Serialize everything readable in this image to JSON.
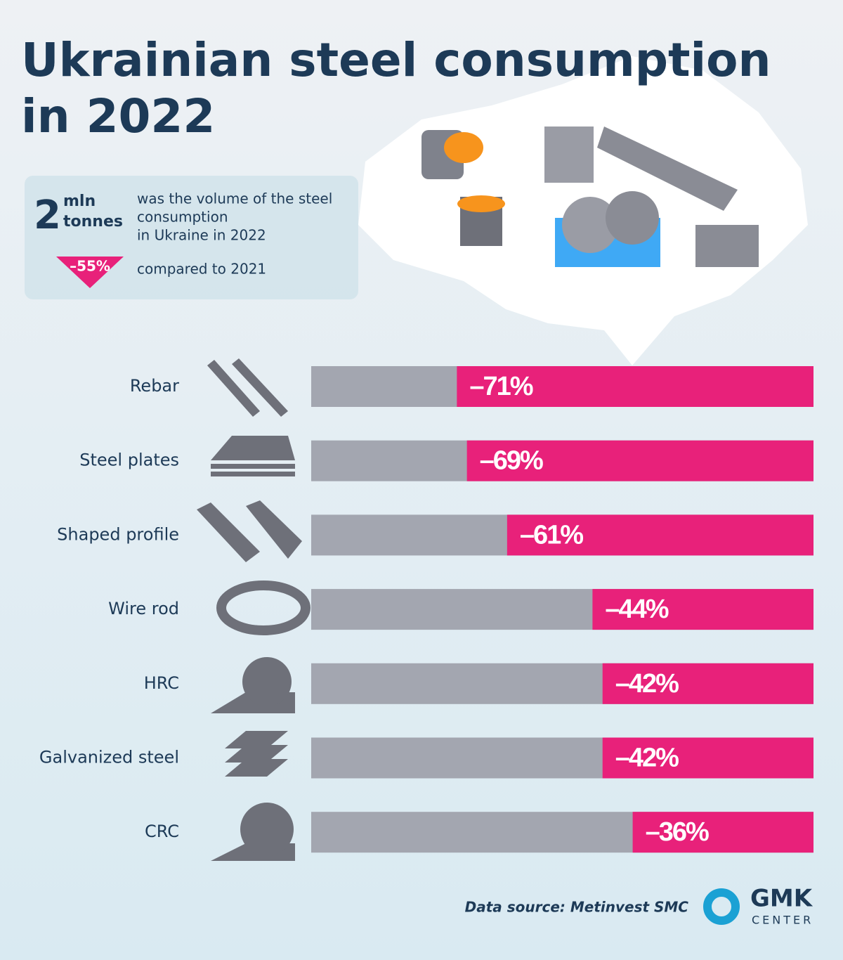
{
  "chart_data": {
    "type": "bar",
    "orientation": "horizontal",
    "title": "Ukrainian steel consumption in 2022",
    "summary": {
      "value": 2,
      "unit": [
        "mln",
        "tonnes"
      ],
      "text": [
        "was the volume of the steel",
        "consumption",
        "in Ukraine in 2022"
      ]
    },
    "change": {
      "value": -55,
      "label": "–55%",
      "text": "compared to 2021",
      "color": "#e8217a"
    },
    "categories": [
      "Rebar",
      "Steel plates",
      "Shaped profile",
      "Wire rod",
      "HRC",
      "Galvanized steel",
      "CRC"
    ],
    "values": [
      -71,
      -69,
      -61,
      -44,
      -42,
      -42,
      -36
    ],
    "value_labels": [
      "–71%",
      "–69%",
      "–61%",
      "–44%",
      "–42%",
      "–42%",
      "–36%"
    ],
    "color": "#e8217a",
    "track_color": "#a3a6b0",
    "xlim": [
      -100,
      0
    ],
    "source": "Data source: Metinvest SMC",
    "logo": [
      "GMK",
      "CENTER"
    ]
  }
}
